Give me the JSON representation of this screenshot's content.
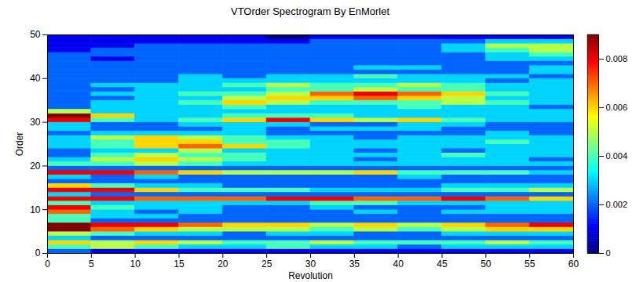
{
  "chart_data": {
    "type": "heatmap",
    "title": "VTOrder Spectrogram By EnMorlet",
    "x_label": "Revolution",
    "y_label": "Order",
    "xlim": [
      0,
      60
    ],
    "ylim": [
      0,
      50
    ],
    "xticks": [
      0,
      5,
      10,
      15,
      20,
      25,
      30,
      35,
      40,
      45,
      50,
      55,
      60
    ],
    "yticks": [
      0,
      10,
      20,
      30,
      40,
      50
    ],
    "x_bins": [
      0,
      5,
      10,
      15,
      20,
      25,
      30,
      35,
      40,
      45,
      50,
      55,
      60
    ],
    "y_bins": [
      0,
      1,
      2,
      3,
      4,
      5,
      6,
      7,
      8,
      9,
      10,
      11,
      12,
      13,
      14,
      15,
      16,
      17,
      18,
      19,
      20,
      21,
      22,
      23,
      24,
      25,
      26,
      27,
      28,
      29,
      30,
      31,
      32,
      33,
      34,
      35,
      36,
      37,
      38,
      39,
      40,
      41,
      42,
      43,
      44,
      45,
      46,
      47,
      48,
      49,
      50
    ],
    "values": [
      [
        0.002,
        0.001,
        0.001,
        0.001,
        0.001,
        0.001,
        0.001,
        0.001,
        0.001,
        0.001,
        0.001,
        0.001
      ],
      [
        0.004,
        0.005,
        0.004,
        0.003,
        0.003,
        0.004,
        0.003,
        0.003,
        0.002,
        0.003,
        0.003,
        0.003
      ],
      [
        0.006,
        0.005,
        0.006,
        0.005,
        0.004,
        0.004,
        0.005,
        0.004,
        0.004,
        0.004,
        0.005,
        0.004
      ],
      [
        0.003,
        0.002,
        0.002,
        0.002,
        0.002,
        0.002,
        0.002,
        0.002,
        0.002,
        0.002,
        0.002,
        0.002
      ],
      [
        0.005,
        0.004,
        0.003,
        0.003,
        0.002,
        0.003,
        0.003,
        0.002,
        0.002,
        0.003,
        0.003,
        0.003
      ],
      [
        0.009,
        0.007,
        0.006,
        0.005,
        0.005,
        0.005,
        0.004,
        0.005,
        0.004,
        0.005,
        0.006,
        0.006
      ],
      [
        0.009,
        0.008,
        0.008,
        0.007,
        0.006,
        0.006,
        0.005,
        0.006,
        0.005,
        0.006,
        0.007,
        0.008
      ],
      [
        0.004,
        0.002,
        0.002,
        0.002,
        0.002,
        0.002,
        0.002,
        0.002,
        0.002,
        0.002,
        0.002,
        0.002
      ],
      [
        0.004,
        0.003,
        0.003,
        0.002,
        0.002,
        0.002,
        0.002,
        0.002,
        0.002,
        0.002,
        0.002,
        0.002
      ],
      [
        0.007,
        0.003,
        0.002,
        0.003,
        0.002,
        0.002,
        0.002,
        0.003,
        0.002,
        0.003,
        0.003,
        0.003
      ],
      [
        0.008,
        0.004,
        0.003,
        0.003,
        0.002,
        0.002,
        0.003,
        0.002,
        0.002,
        0.002,
        0.003,
        0.003
      ],
      [
        0.004,
        0.003,
        0.003,
        0.003,
        0.003,
        0.003,
        0.004,
        0.004,
        0.003,
        0.003,
        0.003,
        0.003
      ],
      [
        0.008,
        0.008,
        0.007,
        0.007,
        0.007,
        0.008,
        0.008,
        0.007,
        0.007,
        0.008,
        0.007,
        0.006
      ],
      [
        0.003,
        0.002,
        0.002,
        0.002,
        0.002,
        0.002,
        0.002,
        0.002,
        0.002,
        0.002,
        0.002,
        0.002
      ],
      [
        0.008,
        0.008,
        0.006,
        0.004,
        0.004,
        0.004,
        0.003,
        0.003,
        0.003,
        0.004,
        0.004,
        0.005
      ],
      [
        0.006,
        0.004,
        0.003,
        0.003,
        0.002,
        0.002,
        0.002,
        0.002,
        0.002,
        0.003,
        0.003,
        0.003
      ],
      [
        0.002,
        0.002,
        0.002,
        0.002,
        0.002,
        0.002,
        0.002,
        0.002,
        0.002,
        0.002,
        0.002,
        0.002
      ],
      [
        0.003,
        0.002,
        0.003,
        0.002,
        0.002,
        0.002,
        0.002,
        0.002,
        0.003,
        0.002,
        0.002,
        0.002
      ],
      [
        0.008,
        0.008,
        0.007,
        0.006,
        0.005,
        0.005,
        0.005,
        0.006,
        0.004,
        0.004,
        0.004,
        0.003
      ],
      [
        0.002,
        0.002,
        0.002,
        0.002,
        0.002,
        0.002,
        0.002,
        0.002,
        0.002,
        0.002,
        0.002,
        0.002
      ],
      [
        0.004,
        0.004,
        0.005,
        0.004,
        0.003,
        0.003,
        0.003,
        0.003,
        0.003,
        0.003,
        0.003,
        0.003
      ],
      [
        0.003,
        0.005,
        0.006,
        0.005,
        0.004,
        0.003,
        0.003,
        0.002,
        0.003,
        0.003,
        0.003,
        0.002
      ],
      [
        0.002,
        0.004,
        0.005,
        0.004,
        0.004,
        0.003,
        0.003,
        0.003,
        0.003,
        0.004,
        0.003,
        0.003
      ],
      [
        0.002,
        0.003,
        0.003,
        0.005,
        0.003,
        0.003,
        0.003,
        0.002,
        0.003,
        0.002,
        0.003,
        0.003
      ],
      [
        0.003,
        0.004,
        0.006,
        0.007,
        0.006,
        0.004,
        0.003,
        0.003,
        0.003,
        0.003,
        0.003,
        0.003
      ],
      [
        0.003,
        0.004,
        0.006,
        0.006,
        0.004,
        0.004,
        0.003,
        0.003,
        0.003,
        0.003,
        0.004,
        0.003
      ],
      [
        0.003,
        0.005,
        0.006,
        0.005,
        0.004,
        0.003,
        0.003,
        0.002,
        0.003,
        0.003,
        0.003,
        0.003
      ],
      [
        0.002,
        0.003,
        0.003,
        0.003,
        0.003,
        0.002,
        0.002,
        0.002,
        0.002,
        0.002,
        0.003,
        0.002
      ],
      [
        0.003,
        0.002,
        0.002,
        0.002,
        0.003,
        0.002,
        0.003,
        0.003,
        0.003,
        0.002,
        0.002,
        0.002
      ],
      [
        0.003,
        0.002,
        0.002,
        0.003,
        0.003,
        0.003,
        0.002,
        0.002,
        0.003,
        0.003,
        0.002,
        0.002
      ],
      [
        0.008,
        0.004,
        0.003,
        0.004,
        0.006,
        0.008,
        0.006,
        0.005,
        0.006,
        0.004,
        0.003,
        0.003
      ],
      [
        0.009,
        0.006,
        0.003,
        0.003,
        0.004,
        0.004,
        0.004,
        0.003,
        0.003,
        0.003,
        0.003,
        0.003
      ],
      [
        0.005,
        0.003,
        0.003,
        0.003,
        0.003,
        0.003,
        0.003,
        0.003,
        0.003,
        0.003,
        0.003,
        0.003
      ],
      [
        0.002,
        0.003,
        0.003,
        0.003,
        0.004,
        0.003,
        0.003,
        0.003,
        0.004,
        0.003,
        0.003,
        0.002
      ],
      [
        0.002,
        0.003,
        0.003,
        0.004,
        0.006,
        0.005,
        0.004,
        0.004,
        0.004,
        0.005,
        0.004,
        0.003
      ],
      [
        0.002,
        0.002,
        0.003,
        0.003,
        0.005,
        0.006,
        0.006,
        0.007,
        0.006,
        0.005,
        0.003,
        0.003
      ],
      [
        0.002,
        0.003,
        0.003,
        0.004,
        0.004,
        0.005,
        0.007,
        0.008,
        0.007,
        0.006,
        0.004,
        0.003
      ],
      [
        0.002,
        0.002,
        0.003,
        0.003,
        0.003,
        0.004,
        0.004,
        0.005,
        0.004,
        0.004,
        0.003,
        0.003
      ],
      [
        0.002,
        0.003,
        0.003,
        0.003,
        0.004,
        0.005,
        0.004,
        0.004,
        0.005,
        0.004,
        0.003,
        0.003
      ],
      [
        0.002,
        0.002,
        0.002,
        0.003,
        0.003,
        0.003,
        0.003,
        0.003,
        0.003,
        0.003,
        0.002,
        0.003
      ],
      [
        0.002,
        0.002,
        0.002,
        0.003,
        0.002,
        0.003,
        0.003,
        0.004,
        0.003,
        0.003,
        0.003,
        0.002
      ],
      [
        0.002,
        0.002,
        0.002,
        0.002,
        0.002,
        0.002,
        0.002,
        0.002,
        0.002,
        0.002,
        0.002,
        0.003
      ],
      [
        0.002,
        0.002,
        0.002,
        0.002,
        0.002,
        0.002,
        0.002,
        0.003,
        0.003,
        0.002,
        0.002,
        0.003
      ],
      [
        0.002,
        0.002,
        0.002,
        0.002,
        0.002,
        0.002,
        0.002,
        0.002,
        0.002,
        0.002,
        0.002,
        0.002
      ],
      [
        0.002,
        0.001,
        0.002,
        0.002,
        0.002,
        0.002,
        0.002,
        0.002,
        0.002,
        0.002,
        0.003,
        0.003
      ],
      [
        0.002,
        0.002,
        0.002,
        0.002,
        0.002,
        0.002,
        0.002,
        0.002,
        0.002,
        0.002,
        0.003,
        0.004
      ],
      [
        0.001,
        0.002,
        0.002,
        0.002,
        0.002,
        0.002,
        0.002,
        0.002,
        0.002,
        0.003,
        0.004,
        0.005
      ],
      [
        0.001,
        0.001,
        0.002,
        0.002,
        0.002,
        0.002,
        0.002,
        0.002,
        0.002,
        0.003,
        0.005,
        0.005
      ],
      [
        0.001,
        0.001,
        0.001,
        0.001,
        0.001,
        0.001,
        0.002,
        0.002,
        0.002,
        0.002,
        0.003,
        0.003
      ],
      [
        0.001,
        0.001,
        0.001,
        0.001,
        0.001,
        0.0,
        0.001,
        0.001,
        0.001,
        0.001,
        0.001,
        0.001
      ]
    ],
    "colorbar": {
      "lim": [
        0,
        0.009
      ],
      "ticks": [
        0,
        0.002,
        0.004,
        0.006,
        0.008
      ]
    }
  }
}
